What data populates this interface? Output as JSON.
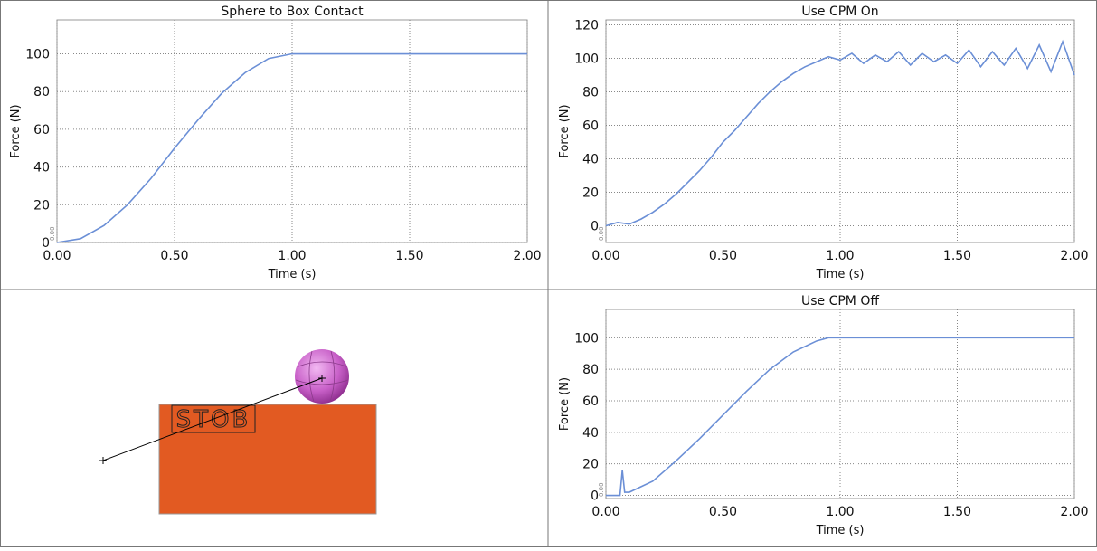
{
  "chart_data": [
    {
      "type": "line",
      "title": "Sphere to Box Contact",
      "x_label": "Time (s)",
      "y_label": "Force (N)",
      "origin_label": "0.00",
      "xlim": [
        0,
        2
      ],
      "xticks": [
        {
          "value": 0,
          "label": "0.00"
        },
        {
          "value": 0.5,
          "label": "0.50"
        },
        {
          "value": 1,
          "label": "1.00"
        },
        {
          "value": 1.5,
          "label": "1.50"
        },
        {
          "value": 2,
          "label": "2.00"
        }
      ],
      "ylim": [
        0,
        118
      ],
      "yticks": [
        0,
        20,
        40,
        60,
        80,
        100
      ],
      "grid": true,
      "series": [
        {
          "color": "#6b8fd6",
          "x": [
            0,
            0.1,
            0.2,
            0.3,
            0.4,
            0.5,
            0.6,
            0.7,
            0.8,
            0.9,
            1.0,
            1.5,
            2.0
          ],
          "values": [
            0,
            2,
            9,
            20,
            34,
            50,
            65,
            79,
            90,
            97.5,
            100,
            100,
            100
          ]
        }
      ]
    },
    {
      "type": "line",
      "title": "Use CPM On",
      "x_label": "Time (s)",
      "y_label": "Force (N)",
      "origin_label": "0.00",
      "xlim": [
        0,
        2
      ],
      "xticks": [
        {
          "value": 0,
          "label": "0.00"
        },
        {
          "value": 0.5,
          "label": "0.50"
        },
        {
          "value": 1,
          "label": "1.00"
        },
        {
          "value": 1.5,
          "label": "1.50"
        },
        {
          "value": 2,
          "label": "2.00"
        }
      ],
      "ylim": [
        -10,
        123
      ],
      "yticks": [
        0,
        20,
        40,
        60,
        80,
        100,
        120
      ],
      "grid": true,
      "series": [
        {
          "color": "#6b8fd6",
          "x": [
            0,
            0.05,
            0.1,
            0.15,
            0.2,
            0.25,
            0.3,
            0.35,
            0.4,
            0.45,
            0.5,
            0.55,
            0.6,
            0.65,
            0.7,
            0.75,
            0.8,
            0.85,
            0.9,
            0.95,
            1.0,
            1.05,
            1.1,
            1.15,
            1.2,
            1.25,
            1.3,
            1.35,
            1.4,
            1.45,
            1.5,
            1.55,
            1.6,
            1.65,
            1.7,
            1.75,
            1.8,
            1.85,
            1.9,
            1.95,
            2.0
          ],
          "values": [
            0,
            2,
            1,
            4,
            8,
            13,
            19,
            26,
            33,
            41,
            50,
            57,
            65,
            73,
            80,
            86,
            91,
            95,
            98,
            101,
            99,
            103,
            97,
            102,
            98,
            104,
            96,
            103,
            98,
            102,
            97,
            105,
            95,
            104,
            96,
            106,
            94,
            108,
            92,
            110,
            90
          ]
        }
      ]
    },
    {
      "type": "line",
      "title": "Use CPM Off",
      "x_label": "Time (s)",
      "y_label": "Force (N)",
      "origin_label": "0.00",
      "xlim": [
        0,
        2
      ],
      "xticks": [
        {
          "value": 0,
          "label": "0.00"
        },
        {
          "value": 0.5,
          "label": "0.50"
        },
        {
          "value": 1,
          "label": "1.00"
        },
        {
          "value": 1.5,
          "label": "1.50"
        },
        {
          "value": 2,
          "label": "2.00"
        }
      ],
      "ylim": [
        -2,
        118
      ],
      "yticks": [
        0,
        20,
        40,
        60,
        80,
        100
      ],
      "grid": true,
      "series": [
        {
          "color": "#6b8fd6",
          "x": [
            0,
            0.06,
            0.07,
            0.08,
            0.1,
            0.2,
            0.3,
            0.4,
            0.5,
            0.6,
            0.7,
            0.8,
            0.9,
            0.95,
            1.0,
            1.5,
            2.0
          ],
          "values": [
            0,
            0,
            16,
            2,
            2,
            9,
            22,
            36,
            51,
            66,
            80,
            91,
            98,
            100,
            100,
            100,
            100
          ]
        }
      ]
    }
  ],
  "viewport": {
    "label": "STOB"
  }
}
